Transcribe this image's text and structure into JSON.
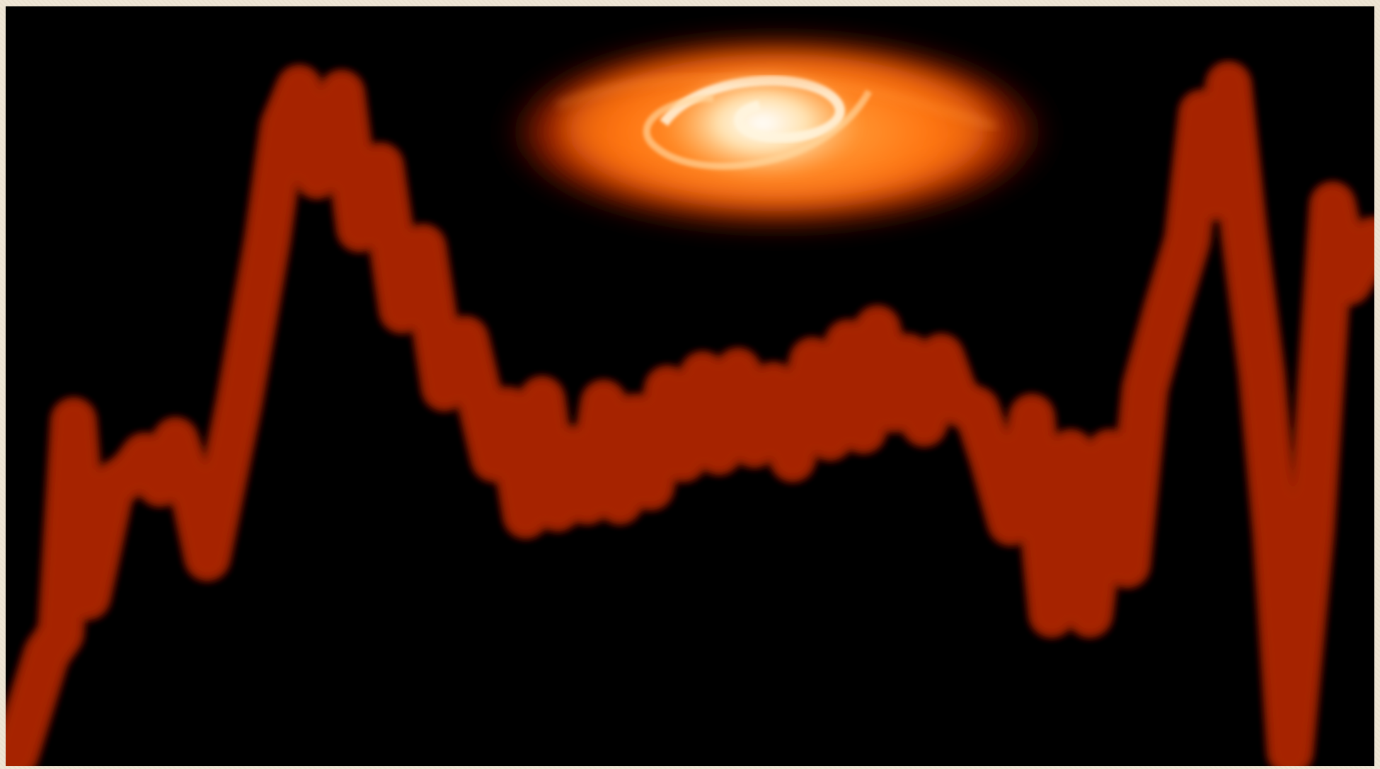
{
  "image": {
    "subject": "glowing-waveform-with-spiral-galaxy",
    "palette": {
      "frame": "#efe6d6",
      "background": "#000000",
      "glow_core": "#fff6b0",
      "glow_mid": "#ffb000",
      "glow_outer": "#c43a00",
      "galaxy_core": "#fff1d6",
      "galaxy_disc": "#ff7a10"
    },
    "elements": [
      "waveform-ribbon",
      "spiral-galaxy"
    ]
  }
}
